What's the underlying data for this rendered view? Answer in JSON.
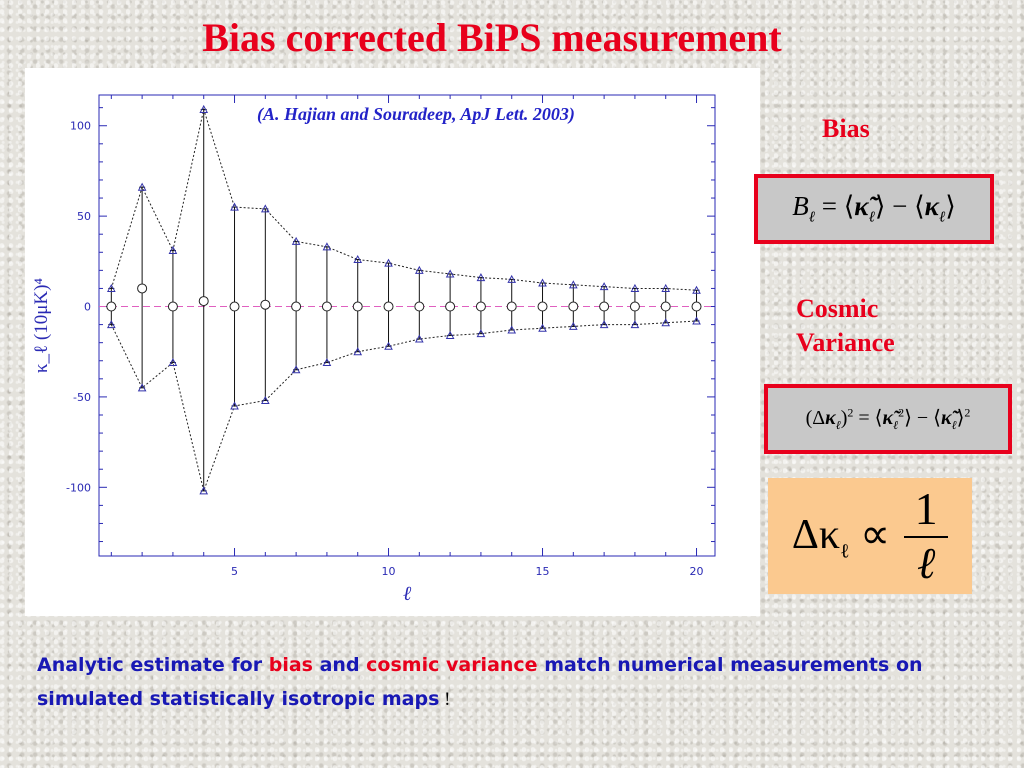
{
  "title": "Bias corrected BiPS measurement",
  "citation": "(A. Hajian and Souradeep, ApJ Lett. 2003)",
  "side_labels": {
    "bias": "Bias",
    "cosmic_line1": "Cosmic",
    "cosmic_line2": "Variance"
  },
  "formulas": {
    "bias": "B_ℓ = ⟨κ̃_ℓ⟩ − ⟨κ_ℓ⟩",
    "cosmic_variance": "(Δκ_ℓ)² = ⟨κ̃_ℓ²⟩ − ⟨κ̃_ℓ⟩²",
    "proportionality": "Δκ_ℓ ∝ 1/ℓ"
  },
  "caption": {
    "part1": "Analytic estimate for ",
    "bias": "bias",
    "and": " and ",
    "cosmic_variance": "cosmic variance",
    "part2": " match numerical measurements on simulated statistically isotropic maps",
    "end": " !"
  },
  "colors": {
    "title": "#e8001c",
    "citation": "#2323c8",
    "caption": "#1818b4",
    "axis": "#2a2ab4",
    "zero_line": "#e060c0",
    "box_border": "#e8001c",
    "prop_box": "#fbc98f"
  },
  "chart_data": {
    "type": "scatter",
    "xlabel": "ℓ",
    "ylabel": "κ_ℓ (10μK)⁴",
    "xlim": [
      0.6,
      20.6
    ],
    "ylim": [
      -138,
      117
    ],
    "xticks": [
      5,
      10,
      15,
      20
    ],
    "yticks": [
      -100,
      -50,
      0,
      50,
      100
    ],
    "x": [
      1,
      2,
      3,
      4,
      5,
      6,
      7,
      8,
      9,
      10,
      11,
      12,
      13,
      14,
      15,
      16,
      17,
      18,
      19,
      20
    ],
    "series": [
      {
        "values": [
          0,
          10,
          0,
          3,
          0,
          1,
          0,
          0,
          0,
          0,
          0,
          0,
          0,
          0,
          0,
          0,
          0,
          0,
          0,
          0
        ]
      },
      {
        "values": [
          10,
          66,
          31,
          109,
          55,
          54,
          36,
          33,
          26,
          24,
          20,
          18,
          16,
          15,
          13,
          12,
          11,
          10,
          10,
          9
        ]
      },
      {
        "values": [
          -10,
          -45,
          -31,
          -102,
          -55,
          -52,
          -35,
          -31,
          -25,
          -22,
          -18,
          -16,
          -15,
          -13,
          -12,
          -11,
          -10,
          -10,
          -9,
          -8
        ]
      }
    ],
    "error_bars": {
      "upper": [
        10,
        66,
        31,
        109,
        55,
        54,
        36,
        33,
        26,
        24,
        20,
        18,
        16,
        15,
        13,
        12,
        11,
        10,
        10,
        9
      ],
      "lower": [
        -10,
        -45,
        -31,
        -102,
        -55,
        -52,
        -35,
        -31,
        -25,
        -22,
        -18,
        -16,
        -15,
        -13,
        -12,
        -11,
        -10,
        -10,
        -9,
        -8
      ]
    },
    "zero_line": 0,
    "grid": false
  }
}
